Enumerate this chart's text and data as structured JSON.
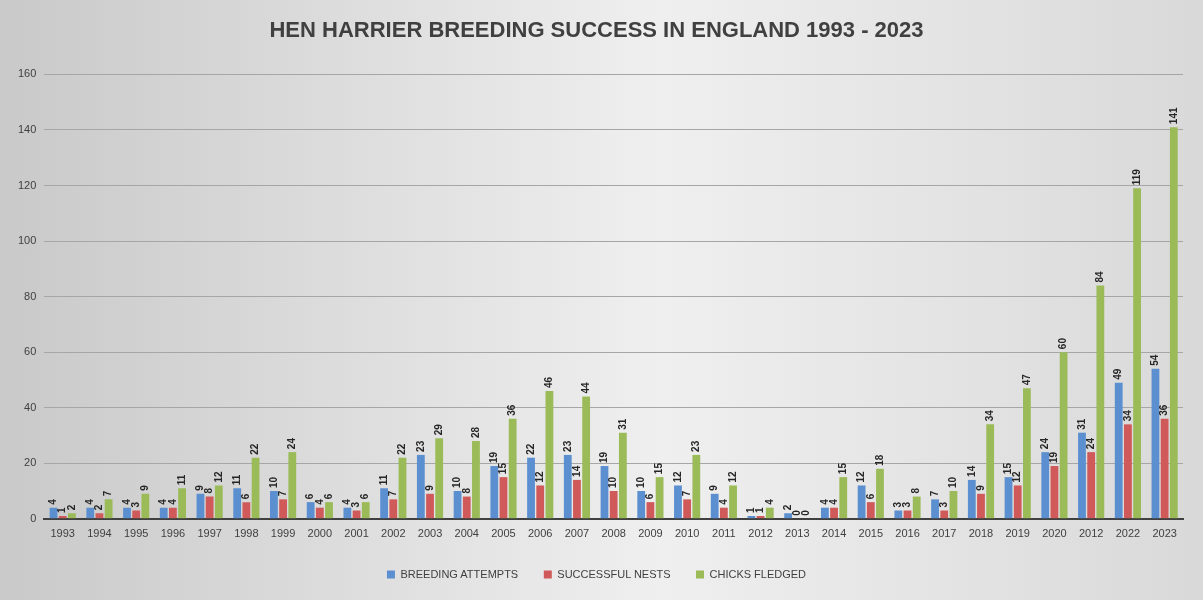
{
  "chart_data": {
    "type": "bar",
    "title": "HEN HARRIER BREEDING SUCCESS IN ENGLAND 1993 - 2023",
    "categories": [
      "1993",
      "1994",
      "1995",
      "1996",
      "1997",
      "1998",
      "1999",
      "2000",
      "2001",
      "2002",
      "2003",
      "2004",
      "2005",
      "2006",
      "2007",
      "2008",
      "2009",
      "2010",
      "2011",
      "2012",
      "2013",
      "2014",
      "2015",
      "2016",
      "2017",
      "2018",
      "2019",
      "2020",
      "2012",
      "2022",
      "2023"
    ],
    "series": [
      {
        "name": "BREEDING ATTEMPTS",
        "color": "#5b8fd0",
        "values": [
          4,
          4,
          4,
          4,
          9,
          11,
          10,
          6,
          4,
          11,
          23,
          10,
          19,
          22,
          23,
          19,
          10,
          12,
          9,
          1,
          2,
          4,
          12,
          3,
          7,
          14,
          15,
          24,
          31,
          49,
          54
        ]
      },
      {
        "name": "SUCCESSFUL NESTS",
        "color": "#d05a5a",
        "values": [
          1,
          2,
          3,
          4,
          8,
          6,
          7,
          4,
          3,
          7,
          9,
          8,
          15,
          12,
          14,
          10,
          6,
          7,
          4,
          1,
          0,
          4,
          6,
          3,
          3,
          9,
          12,
          19,
          24,
          34,
          36
        ]
      },
      {
        "name": "CHICKS FLEDGED",
        "color": "#9bbb59",
        "values": [
          2,
          7,
          9,
          11,
          12,
          22,
          24,
          6,
          6,
          22,
          29,
          28,
          36,
          46,
          44,
          31,
          15,
          23,
          12,
          4,
          0,
          15,
          18,
          8,
          10,
          34,
          47,
          60,
          84,
          119,
          141
        ]
      }
    ],
    "ylim": [
      0,
      160
    ],
    "yticks": [
      0,
      20,
      40,
      60,
      80,
      100,
      120,
      140,
      160
    ],
    "grid": "y",
    "legend": "bottom",
    "data_labels": true
  }
}
